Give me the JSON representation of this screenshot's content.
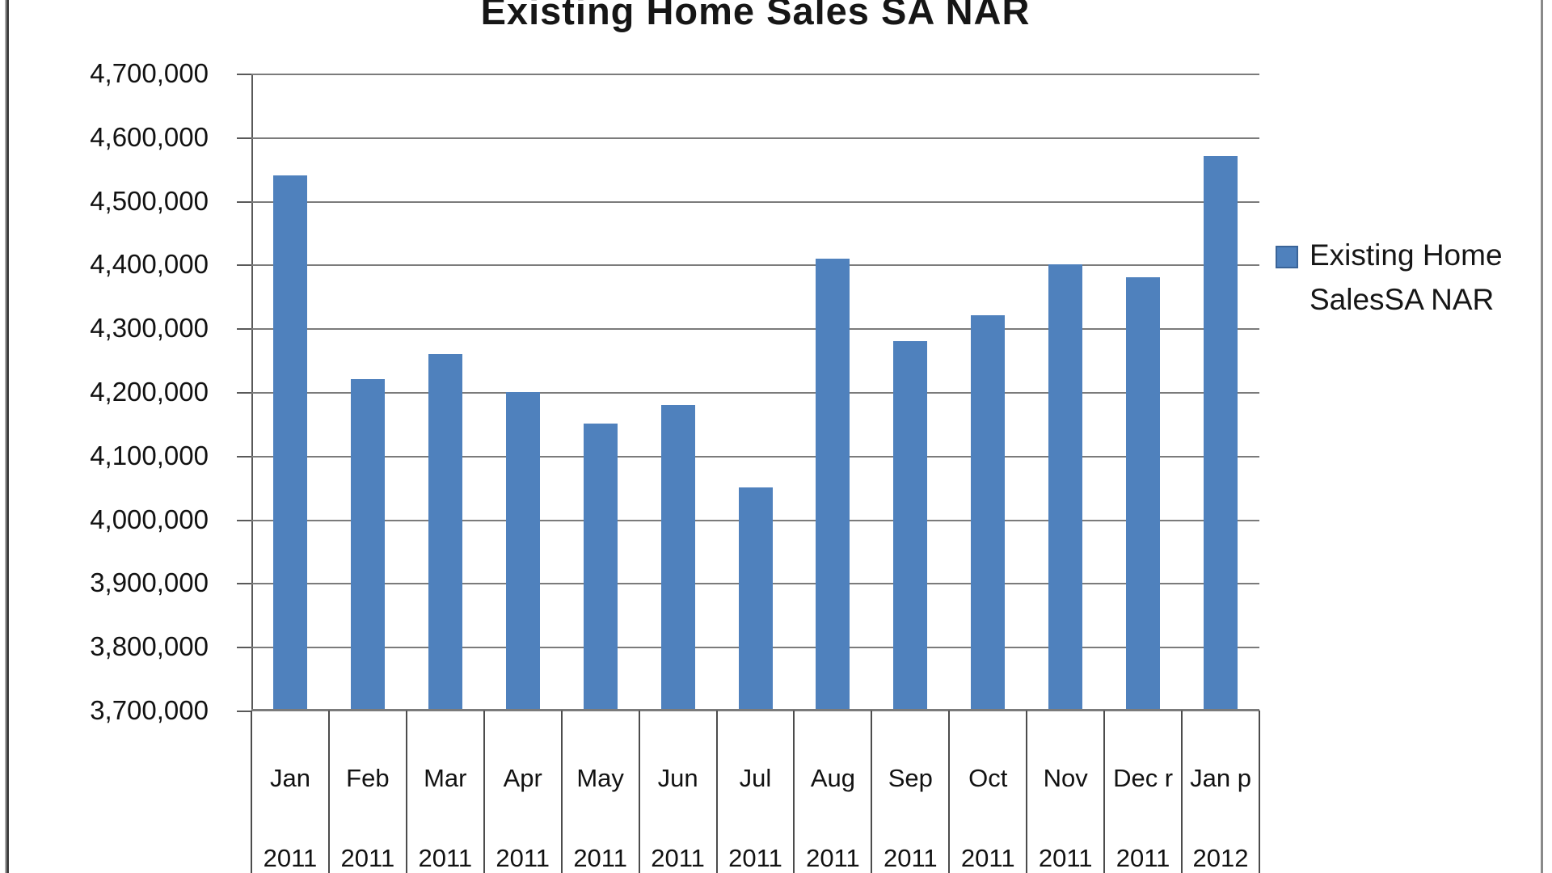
{
  "title": "Existing Home Sales SA NAR",
  "chart_data": {
    "type": "bar",
    "title": "Existing Home Sales SA NAR",
    "series": [
      {
        "name": "Existing Home Sales SA NAR",
        "values": [
          4540000,
          4220000,
          4260000,
          4200000,
          4150000,
          4180000,
          4050000,
          4410000,
          4280000,
          4320000,
          4400000,
          4380000,
          4570000
        ]
      }
    ],
    "categories": [
      "Jan 2011",
      "Feb 2011",
      "Mar 2011",
      "Apr 2011",
      "May 2011",
      "Jun 2011",
      "Jul 2011",
      "Aug 2011",
      "Sep 2011",
      "Oct 2011",
      "Nov 2011",
      "Dec r 2011",
      "Jan p 2012"
    ],
    "xlabel": "",
    "ylabel": "",
    "ylim": [
      3700000,
      4700000
    ],
    "ytick_interval": 100000,
    "grid": true,
    "legend_position": "right",
    "bar_color": "#4F81BD"
  },
  "y_axis": {
    "labels": [
      "4,700,000",
      "4,600,000",
      "4,500,000",
      "4,400,000",
      "4,300,000",
      "4,200,000",
      "4,100,000",
      "4,000,000",
      "3,900,000",
      "3,800,000",
      "3,700,000"
    ]
  },
  "x_axis": {
    "months": [
      "Jan",
      "Feb",
      "Mar",
      "Apr",
      "May",
      "Jun",
      "Jul",
      "Aug",
      "Sep",
      "Oct",
      "Nov",
      "Dec r",
      "Jan p"
    ],
    "years": [
      "2011",
      "2011",
      "2011",
      "2011",
      "2011",
      "2011",
      "2011",
      "2011",
      "2011",
      "2011",
      "2011",
      "2011",
      "2012"
    ]
  },
  "legend": {
    "lines": [
      "Existing Home",
      "SalesSA NAR"
    ],
    "marker_color": "#4F81BD"
  }
}
